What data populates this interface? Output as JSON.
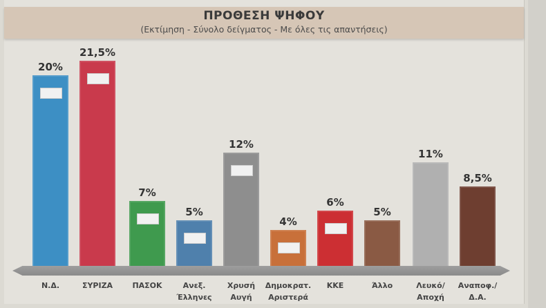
{
  "chart_data": {
    "type": "bar",
    "title": "ΠΡΟΘΕΣΗ ΨΗΦΟΥ",
    "subtitle": "(Εκτίμηση - Σύνολο δείγματος - Με όλες τις απαντήσεις)",
    "xlabel": "",
    "ylabel": "",
    "ylim": [
      0,
      25
    ],
    "grid": false,
    "legend": "none",
    "categories": [
      "Ν.Δ.",
      "ΣΥΡΙΖΑ",
      "ΠΑΣΟΚ",
      "Ανεξ. Έλληνες",
      "Χρυσή Αυγή",
      "Δημοκρατ. Αριστερά",
      "ΚΚΕ",
      "Άλλο",
      "Λευκό/ Αποχή",
      "Αναποφ./ Δ.Α."
    ],
    "values": [
      20,
      21.5,
      7,
      5,
      12,
      4,
      6,
      5,
      11,
      8.5
    ],
    "value_labels": [
      "20%",
      "21,5%",
      "7%",
      "5%",
      "12%",
      "4%",
      "6%",
      "5%",
      "11%",
      "8,5%"
    ],
    "colors": [
      "#3d8fc4",
      "#c93a4c",
      "#3f9a4e",
      "#4f80ac",
      "#8e8e8e",
      "#c8703a",
      "#cc2f33",
      "#8a5a44",
      "#b0b0b0",
      "#6e3e30"
    ]
  },
  "header": {
    "title": "ΠΡΟΘΕΣΗ ΨΗΦΟΥ",
    "subtitle": "(Εκτίμηση - Σύνολο δείγματος - Με όλες τις απαντήσεις)"
  },
  "bars": [
    {
      "line1": "Ν.Δ.",
      "line2": "",
      "label": "20%"
    },
    {
      "line1": "ΣΥΡΙΖΑ",
      "line2": "",
      "label": "21,5%"
    },
    {
      "line1": "ΠΑΣΟΚ",
      "line2": "",
      "label": "7%"
    },
    {
      "line1": "Ανεξ.",
      "line2": "Έλληνες",
      "label": "5%"
    },
    {
      "line1": "Χρυσή",
      "line2": "Αυγή",
      "label": "12%"
    },
    {
      "line1": "Δημοκρατ.",
      "line2": "Αριστερά",
      "label": "4%"
    },
    {
      "line1": "ΚΚΕ",
      "line2": "",
      "label": "6%"
    },
    {
      "line1": "Άλλο",
      "line2": "",
      "label": "5%"
    },
    {
      "line1": "Λευκό/",
      "line2": "Αποχή",
      "label": "11%"
    },
    {
      "line1": "Αναποφ./",
      "line2": "Δ.Α.",
      "label": "8,5%"
    }
  ]
}
